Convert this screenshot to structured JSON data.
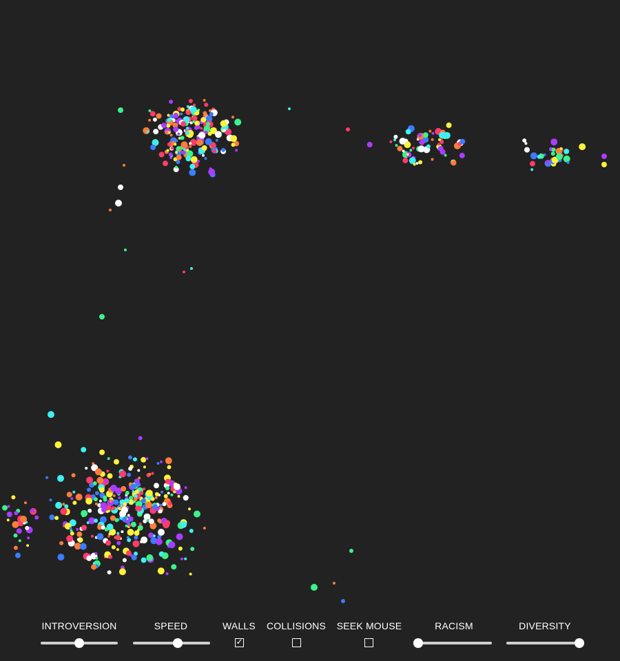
{
  "background_color": "#222222",
  "palette": {
    "red": "#ff3c6a",
    "orange": "#ff7c3a",
    "yellow": "#fff23c",
    "green": "#3cf28a",
    "cyan": "#3ff0f0",
    "blue": "#3c7cff",
    "purple": "#aa3cff",
    "white": "#ffffff"
  },
  "controls": {
    "introversion": {
      "label": "INTROVERSION",
      "value": 0.5
    },
    "speed": {
      "label": "SPEED",
      "value": 0.58
    },
    "walls": {
      "label": "WALLS",
      "checked": true
    },
    "collisions": {
      "label": "COLLISIONS",
      "checked": false
    },
    "seek_mouse": {
      "label": "SEEK MOUSE",
      "checked": false
    },
    "racism": {
      "label": "RACISM",
      "value": 0.0
    },
    "diversity": {
      "label": "DIVERSITY",
      "value": 1.0
    }
  }
}
